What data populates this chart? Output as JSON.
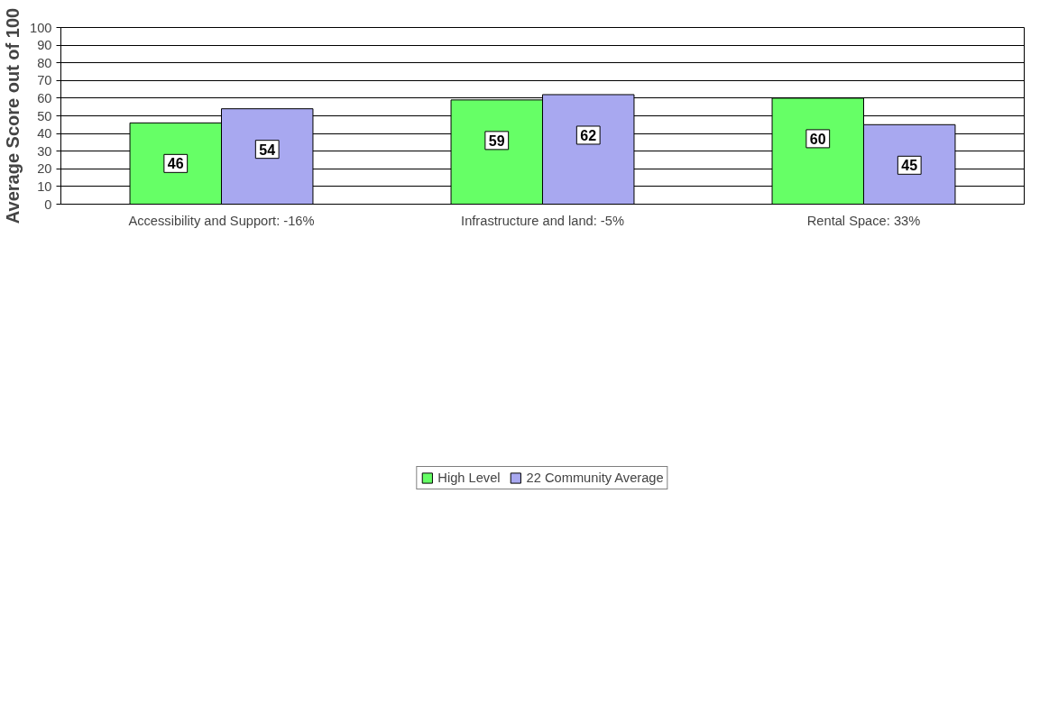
{
  "chart_data": {
    "type": "bar",
    "ylabel": "Average Score out of 100",
    "categories": [
      "Accessibility and Support: -16%",
      "Infrastructure and land: -5%",
      "Rental Space: 33%"
    ],
    "series": [
      {
        "name": "High Level",
        "color": "#66ff66",
        "values": [
          46,
          59,
          60
        ]
      },
      {
        "name": "22 Community Average",
        "color": "#a8a8f0",
        "values": [
          54,
          62,
          45
        ]
      }
    ],
    "ylim": [
      0,
      100
    ],
    "yticks": [
      0,
      10,
      20,
      30,
      40,
      50,
      60,
      70,
      80,
      90,
      100
    ],
    "grid": "y",
    "legend": "bottom",
    "data_labels": true
  }
}
